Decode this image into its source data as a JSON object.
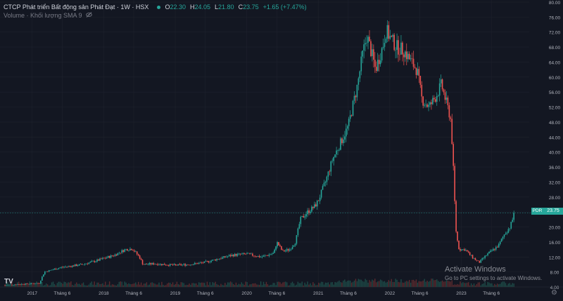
{
  "header": {
    "title": "CTCP Phát triển Bất động sản Phát Đạt · 1W · HSX",
    "ohlc": [
      {
        "key": "O",
        "value": "22.30"
      },
      {
        "key": "H",
        "value": "24.05"
      },
      {
        "key": "L",
        "value": "21.80"
      },
      {
        "key": "C",
        "value": "23.75"
      }
    ],
    "change": "+1.65 (+7.47%)",
    "volume_label": "Volume · Khối lượng SMA 9"
  },
  "price_tag": {
    "symbol": "PDR",
    "value": "23.75"
  },
  "watermark": {
    "line1": "Activate Windows",
    "line2": "Go to PC settings to activate Windows."
  },
  "logo": "TV",
  "colors": {
    "background": "#131722",
    "up": "#26a69a",
    "down": "#ef5350",
    "text": "#b2b5be",
    "grid": "#1e222d"
  },
  "icons": [
    "eye-off-icon",
    "settings-gear-icon",
    "tradingview-logo-icon"
  ],
  "chart_data": {
    "type": "candlestick",
    "title": "CTCP Phát triển Bất động sản Phát Đạt · 1W · HSX",
    "ylim": [
      4,
      80
    ],
    "y_ticks": [
      "80.00",
      "76.00",
      "72.00",
      "68.00",
      "64.00",
      "60.00",
      "56.00",
      "52.00",
      "48.00",
      "44.00",
      "40.00",
      "36.00",
      "32.00",
      "28.00",
      "24.00",
      "20.00",
      "16.00",
      "12.00",
      "8.00",
      "4.00"
    ],
    "x_ticks": [
      {
        "label": "2017",
        "t": 2017.0
      },
      {
        "label": "Tháng 6",
        "t": 2017.42
      },
      {
        "label": "2018",
        "t": 2018.0
      },
      {
        "label": "Tháng 6",
        "t": 2018.42
      },
      {
        "label": "2019",
        "t": 2019.0
      },
      {
        "label": "Tháng 6",
        "t": 2019.42
      },
      {
        "label": "2020",
        "t": 2020.0
      },
      {
        "label": "Tháng 6",
        "t": 2020.42
      },
      {
        "label": "2021",
        "t": 2021.0
      },
      {
        "label": "Tháng 6",
        "t": 2021.42
      },
      {
        "label": "2022",
        "t": 2022.0
      },
      {
        "label": "Tháng 6",
        "t": 2022.42
      },
      {
        "label": "2023",
        "t": 2023.0
      },
      {
        "label": "Tháng 6",
        "t": 2023.42
      }
    ],
    "last_price": 23.75,
    "price_path": [
      [
        2016.62,
        4.5
      ],
      [
        2016.9,
        4.8
      ],
      [
        2017.1,
        5.0
      ],
      [
        2017.17,
        8.0
      ],
      [
        2017.4,
        9.2
      ],
      [
        2017.7,
        10.0
      ],
      [
        2017.9,
        11.0
      ],
      [
        2018.15,
        12.5
      ],
      [
        2018.25,
        13.5
      ],
      [
        2018.3,
        14.0
      ],
      [
        2018.4,
        14.2
      ],
      [
        2018.5,
        12.0
      ],
      [
        2018.55,
        10.0
      ],
      [
        2018.7,
        10.2
      ],
      [
        2019.0,
        9.8
      ],
      [
        2019.2,
        10.0
      ],
      [
        2019.4,
        10.5
      ],
      [
        2019.6,
        11.5
      ],
      [
        2019.8,
        12.5
      ],
      [
        2020.0,
        12.8
      ],
      [
        2020.2,
        12.0
      ],
      [
        2020.38,
        13.0
      ],
      [
        2020.42,
        16.0
      ],
      [
        2020.5,
        13.5
      ],
      [
        2020.6,
        14.0
      ],
      [
        2020.68,
        16.0
      ],
      [
        2020.75,
        22.0
      ],
      [
        2020.85,
        24.0
      ],
      [
        2020.95,
        25.5
      ],
      [
        2021.0,
        27.0
      ],
      [
        2021.1,
        32.0
      ],
      [
        2021.2,
        38.0
      ],
      [
        2021.3,
        42.0
      ],
      [
        2021.42,
        47.0
      ],
      [
        2021.55,
        58.0
      ],
      [
        2021.62,
        66.0
      ],
      [
        2021.68,
        71.0
      ],
      [
        2021.75,
        66.0
      ],
      [
        2021.8,
        62.0
      ],
      [
        2021.9,
        68.0
      ],
      [
        2021.95,
        72.5
      ],
      [
        2022.02,
        70.0
      ],
      [
        2022.1,
        68.0
      ],
      [
        2022.2,
        67.0
      ],
      [
        2022.3,
        64.0
      ],
      [
        2022.38,
        62.0
      ],
      [
        2022.45,
        54.0
      ],
      [
        2022.55,
        52.0
      ],
      [
        2022.65,
        55.0
      ],
      [
        2022.72,
        58.0
      ],
      [
        2022.78,
        54.0
      ],
      [
        2022.85,
        49.0
      ],
      [
        2022.88,
        40.0
      ],
      [
        2022.9,
        30.0
      ],
      [
        2022.93,
        18.0
      ],
      [
        2022.97,
        14.0
      ],
      [
        2023.05,
        14.0
      ],
      [
        2023.15,
        12.0
      ],
      [
        2023.25,
        10.5
      ],
      [
        2023.35,
        12.5
      ],
      [
        2023.45,
        14.0
      ],
      [
        2023.52,
        15.0
      ],
      [
        2023.6,
        18.0
      ],
      [
        2023.68,
        20.0
      ],
      [
        2023.75,
        23.75
      ]
    ]
  }
}
